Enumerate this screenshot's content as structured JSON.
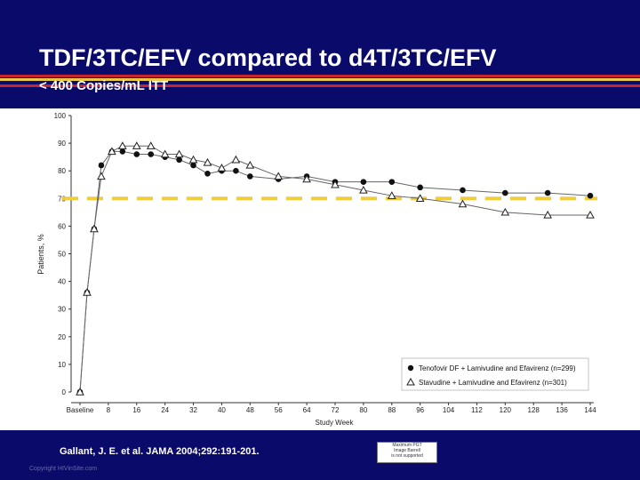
{
  "slide": {
    "title": "TDF/3TC/EFV compared to d4T/3TC/EFV",
    "subtitle": "< 400 Copies/mL ITT",
    "citation": "Gallant, J. E. et al. JAMA 2004;292:191-201.",
    "copyright": "Copyright HIVinSite.com",
    "stamp_lines": [
      "Maximum PGT",
      "Image Barrell",
      "is not supported"
    ],
    "header_color": "#0a0a6b",
    "stripe_colors": [
      "#c8242e",
      "#e8c84a",
      "#c8242e"
    ]
  },
  "chart_data": {
    "type": "line",
    "xlabel": "Study Week",
    "ylabel": "Patients, %",
    "ylim": [
      0,
      100
    ],
    "yticks": [
      0,
      10,
      20,
      30,
      40,
      50,
      60,
      70,
      80,
      90,
      100
    ],
    "xticks": [
      {
        "label": "Baseline",
        "value": 0
      },
      {
        "label": "8",
        "value": 8
      },
      {
        "label": "16",
        "value": 16
      },
      {
        "label": "24",
        "value": 24
      },
      {
        "label": "32",
        "value": 32
      },
      {
        "label": "40",
        "value": 40
      },
      {
        "label": "48",
        "value": 48
      },
      {
        "label": "56",
        "value": 56
      },
      {
        "label": "64",
        "value": 64
      },
      {
        "label": "72",
        "value": 72
      },
      {
        "label": "80",
        "value": 80
      },
      {
        "label": "88",
        "value": 88
      },
      {
        "label": "96",
        "value": 96
      },
      {
        "label": "104",
        "value": 104
      },
      {
        "label": "112",
        "value": 112
      },
      {
        "label": "120",
        "value": 120
      },
      {
        "label": "128",
        "value": 128
      },
      {
        "label": "136",
        "value": 136
      },
      {
        "label": "144",
        "value": 144
      }
    ],
    "xlim": [
      0,
      144
    ],
    "reference_line": {
      "y": 70,
      "color": "#f0cc40"
    },
    "legend_position": "bottom-right",
    "series": [
      {
        "name": "Tenofovir DF + Lamivudine and Efavirenz (n=299)",
        "marker": "circle",
        "x": [
          0,
          2,
          4,
          6,
          9,
          12,
          16,
          20,
          24,
          28,
          32,
          36,
          40,
          44,
          48,
          56,
          64,
          72,
          80,
          88,
          96,
          108,
          120,
          132,
          144
        ],
        "y": [
          0,
          36,
          59,
          82,
          87,
          87,
          86,
          86,
          85,
          84,
          82,
          79,
          80,
          80,
          78,
          77,
          78,
          76,
          76,
          76,
          74,
          73,
          72,
          72,
          71
        ]
      },
      {
        "name": "Stavudine + Lamivudine and Efavirenz (n=301)",
        "marker": "triangle",
        "x": [
          0,
          2,
          4,
          6,
          9,
          12,
          16,
          20,
          24,
          28,
          32,
          36,
          40,
          44,
          48,
          56,
          64,
          72,
          80,
          88,
          96,
          108,
          120,
          132,
          144
        ],
        "y": [
          0,
          36,
          59,
          78,
          87,
          89,
          89,
          89,
          86,
          86,
          84,
          83,
          81,
          84,
          82,
          78,
          77,
          75,
          73,
          71,
          70,
          68,
          65,
          64,
          64
        ]
      }
    ]
  }
}
